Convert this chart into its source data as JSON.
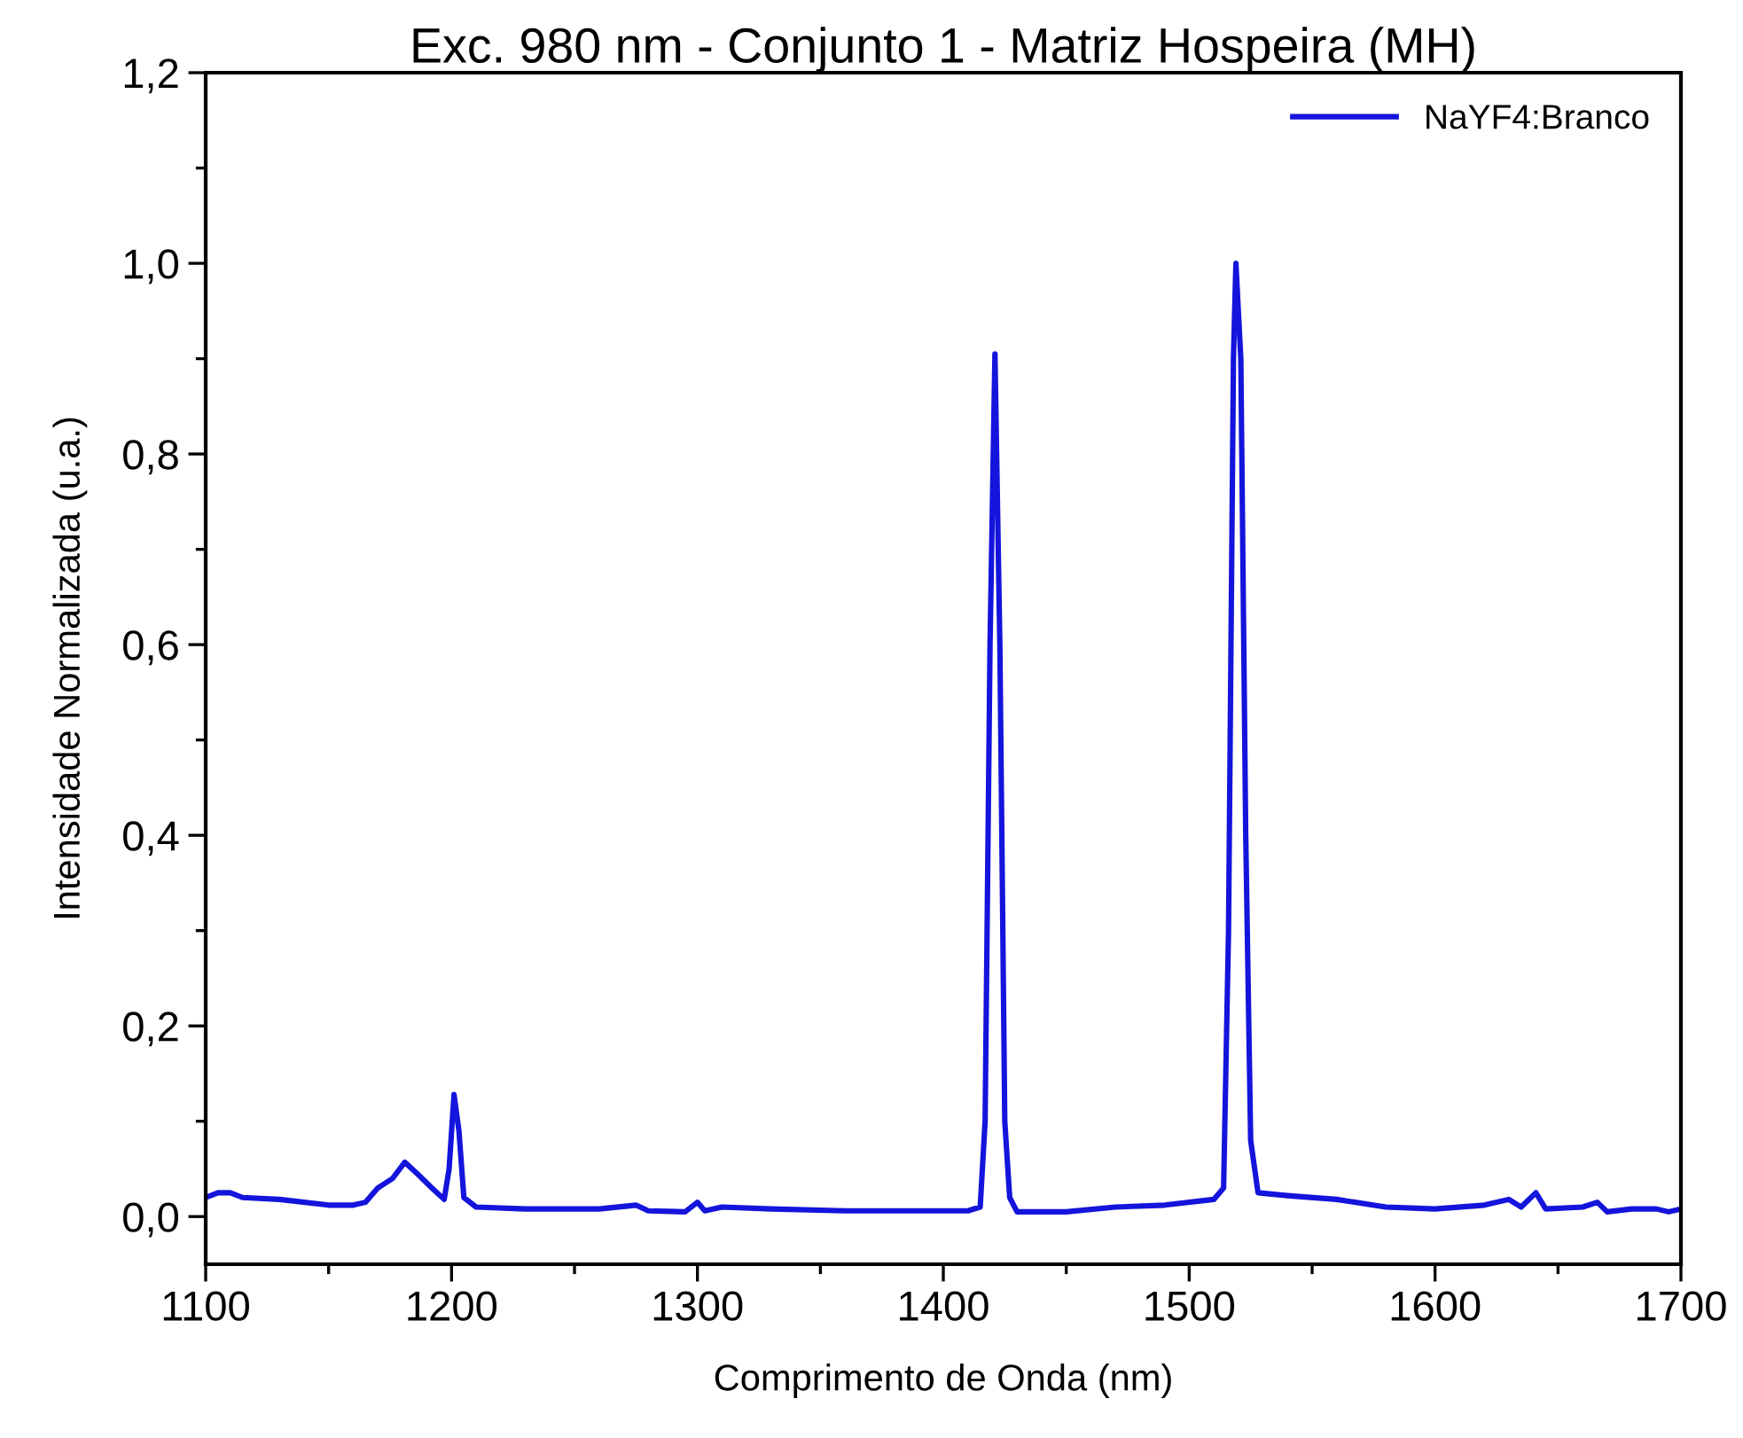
{
  "chart_data": {
    "type": "line",
    "title": "Exc. 980 nm - Conjunto 1 - Matriz Hospeira (MH)",
    "xlabel": "Comprimento de Onda (nm)",
    "ylabel": "Intensidade Normalizada (u.a.)",
    "xlim": [
      1100,
      1700
    ],
    "xticks": [
      1100,
      1200,
      1300,
      1400,
      1500,
      1600,
      1700
    ],
    "ylim": [
      -0.05,
      1.2
    ],
    "yticks": [
      {
        "value": 0,
        "label": "0,0"
      },
      {
        "value": 0.2,
        "label": "0,2"
      },
      {
        "value": 0.4,
        "label": "0,4"
      },
      {
        "value": 0.6,
        "label": "0,6"
      },
      {
        "value": 0.8,
        "label": "0,8"
      },
      {
        "value": 1.0,
        "label": "1,0"
      },
      {
        "value": 1.2,
        "label": "1,2"
      }
    ],
    "legend": "top right",
    "grid": false,
    "marker": "none",
    "line_style": "solid",
    "series": [
      {
        "name": "NaYF4:Branco",
        "color": "#1414dc",
        "x": [
          1100,
          1105,
          1110,
          1115,
          1130,
          1150,
          1160,
          1165,
          1170,
          1176,
          1181,
          1186,
          1192,
          1197,
          1199,
          1201,
          1203,
          1205,
          1210,
          1230,
          1260,
          1275,
          1280,
          1295,
          1300,
          1303,
          1310,
          1330,
          1360,
          1390,
          1410,
          1415,
          1417,
          1419,
          1421,
          1423,
          1425,
          1427,
          1430,
          1450,
          1470,
          1490,
          1510,
          1514,
          1516,
          1518,
          1519,
          1521,
          1523,
          1525,
          1528,
          1540,
          1560,
          1580,
          1600,
          1620,
          1630,
          1635,
          1641,
          1645,
          1660,
          1666,
          1670,
          1680,
          1690,
          1695,
          1700
        ],
        "values": [
          0.02,
          0.025,
          0.025,
          0.02,
          0.018,
          0.012,
          0.012,
          0.015,
          0.03,
          0.04,
          0.057,
          0.045,
          0.03,
          0.018,
          0.05,
          0.128,
          0.09,
          0.02,
          0.01,
          0.008,
          0.008,
          0.012,
          0.006,
          0.005,
          0.015,
          0.006,
          0.01,
          0.008,
          0.006,
          0.006,
          0.006,
          0.01,
          0.1,
          0.6,
          0.905,
          0.6,
          0.1,
          0.02,
          0.005,
          0.005,
          0.01,
          0.012,
          0.018,
          0.03,
          0.3,
          0.9,
          1.0,
          0.9,
          0.4,
          0.08,
          0.025,
          0.022,
          0.018,
          0.01,
          0.008,
          0.012,
          0.018,
          0.01,
          0.025,
          0.008,
          0.01,
          0.015,
          0.005,
          0.008,
          0.008,
          0.005,
          0.008
        ]
      }
    ]
  }
}
